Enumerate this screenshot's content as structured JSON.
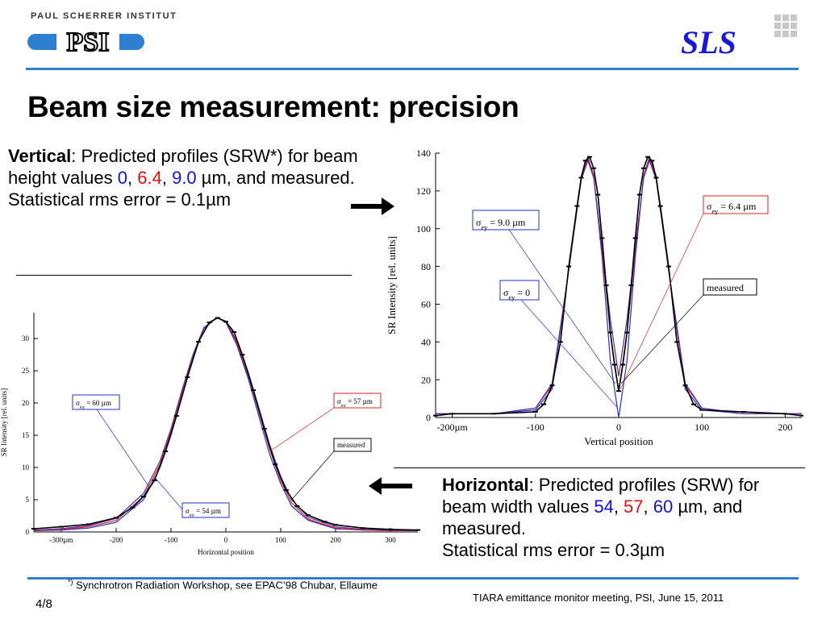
{
  "header": {
    "institute": "PAUL SCHERRER INSTITUT",
    "psi_logo_text": "PSI",
    "sls_logo_text": "SLS",
    "title": "Beam size measurement: precision"
  },
  "vertical_text": {
    "bold": "Vertical",
    "t1": ": Predicted profiles (SRW*) for beam height values ",
    "v1": "0",
    "sep1": ", ",
    "v2": "6.4",
    "sep2": ", ",
    "v3": "9.0",
    "t2": " µm, and measured.",
    "t3": "Statistical rms error = 0.1µm"
  },
  "horizontal_text": {
    "bold": "Horizontal",
    "t1": ": Predicted profiles (SRW)  for beam width values ",
    "v1": "54",
    "sep1": ", ",
    "v2": "57",
    "sep2": ", ",
    "v3": "60",
    "t2": " µm, and measured.",
    "t3": "Statistical rms error = 0.3µm"
  },
  "footer": {
    "footnote_mark": "*)",
    "footnote": " Synchrotron Radiation Workshop, see EPAC’98 Chubar, Ellaume",
    "page": "4/8",
    "meeting": "TIARA emittance monitor meeting, PSI, June 15, 2011"
  },
  "colors": {
    "accent": "#2f7fd1",
    "blue_value": "#1010e0",
    "red_value": "#e01010",
    "sls_blue": "#1a1ad6"
  },
  "chart_data": [
    {
      "type": "line",
      "xlabel": "Vertical position",
      "ylabel": "SR Intensity [rel. units]",
      "xlim": [
        -220,
        220
      ],
      "ylim": [
        0,
        140
      ],
      "xticks": [
        -200,
        -100,
        0,
        100,
        200
      ],
      "xtick_labels": [
        "-200µm",
        "-100",
        "0",
        "100",
        "200"
      ],
      "yticks": [
        0,
        20,
        40,
        60,
        80,
        100,
        120,
        140
      ],
      "ytick_labels": [
        "0",
        "20",
        "40",
        "60",
        "80",
        "100",
        "120",
        "140"
      ],
      "series": [
        {
          "name": "σey = 0",
          "color": "#2030d0",
          "x": [
            -220,
            -150,
            -100,
            -80,
            -60,
            -45,
            -37,
            -30,
            -20,
            -10,
            0,
            10,
            20,
            30,
            37,
            45,
            60,
            80,
            100,
            150,
            220
          ],
          "y": [
            2,
            2,
            4,
            15,
            78,
            128,
            138,
            128,
            85,
            30,
            0,
            30,
            85,
            128,
            138,
            128,
            78,
            15,
            4,
            2,
            2
          ]
        },
        {
          "name": "σey = 6.4 µm",
          "color": "#e02020",
          "x": [
            -220,
            -150,
            -100,
            -80,
            -60,
            -45,
            -37,
            -30,
            -20,
            -10,
            0,
            10,
            20,
            30,
            37,
            45,
            60,
            80,
            100,
            150,
            220
          ],
          "y": [
            2,
            2,
            5,
            17,
            78,
            127,
            137,
            128,
            88,
            45,
            14,
            45,
            88,
            128,
            137,
            127,
            78,
            17,
            5,
            2,
            2
          ]
        },
        {
          "name": "σey = 9.0 µm",
          "color": "#5030a0",
          "x": [
            -220,
            -150,
            -100,
            -80,
            -60,
            -45,
            -37,
            -30,
            -20,
            -10,
            0,
            10,
            20,
            30,
            37,
            45,
            60,
            80,
            100,
            150,
            220
          ],
          "y": [
            2,
            2,
            5,
            18,
            78,
            126,
            136,
            127,
            90,
            52,
            22,
            52,
            90,
            127,
            136,
            126,
            78,
            18,
            5,
            2,
            2
          ]
        },
        {
          "name": "measured",
          "color": "#000000",
          "x": [
            -220,
            -200,
            -150,
            -100,
            -90,
            -80,
            -70,
            -60,
            -50,
            -45,
            -40,
            -35,
            -30,
            -25,
            -20,
            -15,
            -10,
            -5,
            0,
            5,
            10,
            15,
            20,
            25,
            30,
            35,
            40,
            45,
            50,
            60,
            70,
            80,
            90,
            100,
            150,
            200,
            220
          ],
          "y": [
            1,
            2,
            2,
            3,
            7,
            17,
            40,
            80,
            112,
            127,
            136,
            138,
            132,
            118,
            95,
            70,
            45,
            28,
            14,
            28,
            45,
            70,
            95,
            118,
            132,
            138,
            136,
            127,
            112,
            80,
            40,
            17,
            7,
            4,
            3,
            2,
            1
          ]
        }
      ],
      "annotations": [
        {
          "sub": "ey",
          "value": "9.0 µm",
          "color": "#2030d0"
        },
        {
          "sub": "ey",
          "value": "0",
          "color": "#2030d0"
        },
        {
          "sub": "ey",
          "value": "6.4 µm",
          "color": "#e02020"
        },
        {
          "text": "measured",
          "color": "#000000"
        }
      ]
    },
    {
      "type": "line",
      "xlabel": "Horizontal position",
      "ylabel": "SR Intensity [rel. units]",
      "xlim": [
        -350,
        350
      ],
      "ylim": [
        0,
        34
      ],
      "xticks": [
        -300,
        -200,
        -100,
        0,
        100,
        200,
        300
      ],
      "xtick_labels": [
        "-300µm",
        "-200",
        "-100",
        "0",
        "100",
        "200",
        "300"
      ],
      "yticks": [
        0,
        5,
        10,
        15,
        20,
        25,
        30
      ],
      "ytick_labels": [
        "0",
        "5",
        "10",
        "15",
        "20",
        "25",
        "30"
      ],
      "series": [
        {
          "name": "σex = 54 µm",
          "color": "#2030d0",
          "x": [
            -350,
            -300,
            -250,
            -200,
            -150,
            -120,
            -100,
            -80,
            -60,
            -40,
            -20,
            -15,
            0,
            20,
            40,
            60,
            80,
            100,
            120,
            150,
            200,
            250,
            300,
            350
          ],
          "y": [
            0.2,
            0.3,
            0.6,
            1.5,
            5,
            10,
            15,
            21,
            27,
            31.5,
            33,
            33.2,
            32.5,
            29,
            24,
            18,
            12,
            7.5,
            4,
            1.8,
            0.5,
            0.3,
            0.2,
            0.2
          ]
        },
        {
          "name": "σex = 57 µm",
          "color": "#e02020",
          "x": [
            -350,
            -300,
            -250,
            -200,
            -150,
            -120,
            -100,
            -80,
            -60,
            -40,
            -20,
            -15,
            0,
            20,
            40,
            60,
            80,
            100,
            120,
            150,
            200,
            250,
            300,
            350
          ],
          "y": [
            0.2,
            0.4,
            0.8,
            1.8,
            5.5,
            10.5,
            15.5,
            21.5,
            27.3,
            31.6,
            33,
            33.2,
            32.6,
            29.3,
            24.5,
            18.7,
            12.8,
            8,
            4.5,
            2,
            0.6,
            0.3,
            0.2,
            0.2
          ]
        },
        {
          "name": "σex = 60 µm",
          "color": "#5030a0",
          "x": [
            -350,
            -300,
            -250,
            -200,
            -150,
            -120,
            -100,
            -80,
            -60,
            -40,
            -20,
            -15,
            0,
            20,
            40,
            60,
            80,
            100,
            120,
            150,
            200,
            250,
            300,
            350
          ],
          "y": [
            0.3,
            0.5,
            1,
            2.1,
            6,
            11,
            16,
            22,
            27.5,
            31.7,
            33,
            33.2,
            32.7,
            29.6,
            25,
            19.3,
            13.5,
            8.6,
            5,
            2.3,
            0.8,
            0.4,
            0.3,
            0.2
          ]
        },
        {
          "name": "measured",
          "color": "#000000",
          "x": [
            -350,
            -300,
            -250,
            -200,
            -170,
            -150,
            -130,
            -110,
            -90,
            -70,
            -50,
            -30,
            -15,
            0,
            15,
            30,
            50,
            70,
            90,
            110,
            130,
            150,
            180,
            200,
            250,
            300,
            350
          ],
          "y": [
            0.5,
            0.8,
            1.2,
            2.2,
            3.8,
            5.5,
            8,
            12.5,
            18,
            24,
            29.5,
            32.5,
            33.2,
            32.6,
            31,
            27.5,
            22,
            16,
            10.5,
            6.5,
            4,
            2.6,
            1.6,
            1.1,
            0.6,
            0.4,
            0.3
          ]
        }
      ],
      "annotations": [
        {
          "sub": "ex",
          "value": "60 µm",
          "color": "#2030d0"
        },
        {
          "sub": "ex",
          "value": "57 µm",
          "color": "#e02020"
        },
        {
          "text": "measured",
          "color": "#000000"
        },
        {
          "sub": "ex",
          "value": "54 µm",
          "color": "#2030d0"
        }
      ]
    }
  ]
}
